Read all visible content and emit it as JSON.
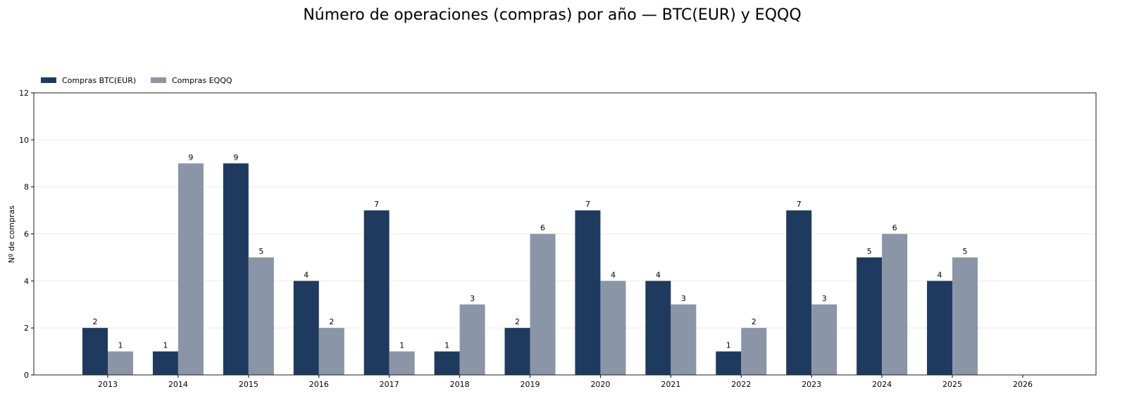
{
  "chart_data": {
    "type": "bar",
    "title": "Número de operaciones (compras) por año — BTC(EUR) y EQQQ",
    "xlabel": "",
    "ylabel": "Nº de compras",
    "categories": [
      "2013",
      "2014",
      "2015",
      "2016",
      "2017",
      "2018",
      "2019",
      "2020",
      "2021",
      "2022",
      "2023",
      "2024",
      "2025",
      "2026"
    ],
    "series": [
      {
        "name": "Compras BTC(EUR)",
        "color": "#1f3a5f",
        "values": [
          2,
          1,
          9,
          4,
          7,
          1,
          2,
          7,
          4,
          1,
          7,
          5,
          4,
          0
        ]
      },
      {
        "name": "Compras EQQQ",
        "color": "#8a95a8",
        "values": [
          1,
          9,
          5,
          2,
          1,
          3,
          6,
          4,
          3,
          2,
          3,
          6,
          5,
          0
        ]
      }
    ],
    "ylim": [
      0,
      12
    ],
    "yticks": [
      0,
      2,
      4,
      6,
      8,
      10,
      12
    ],
    "grid": "horizontal",
    "legend": "top-left"
  }
}
